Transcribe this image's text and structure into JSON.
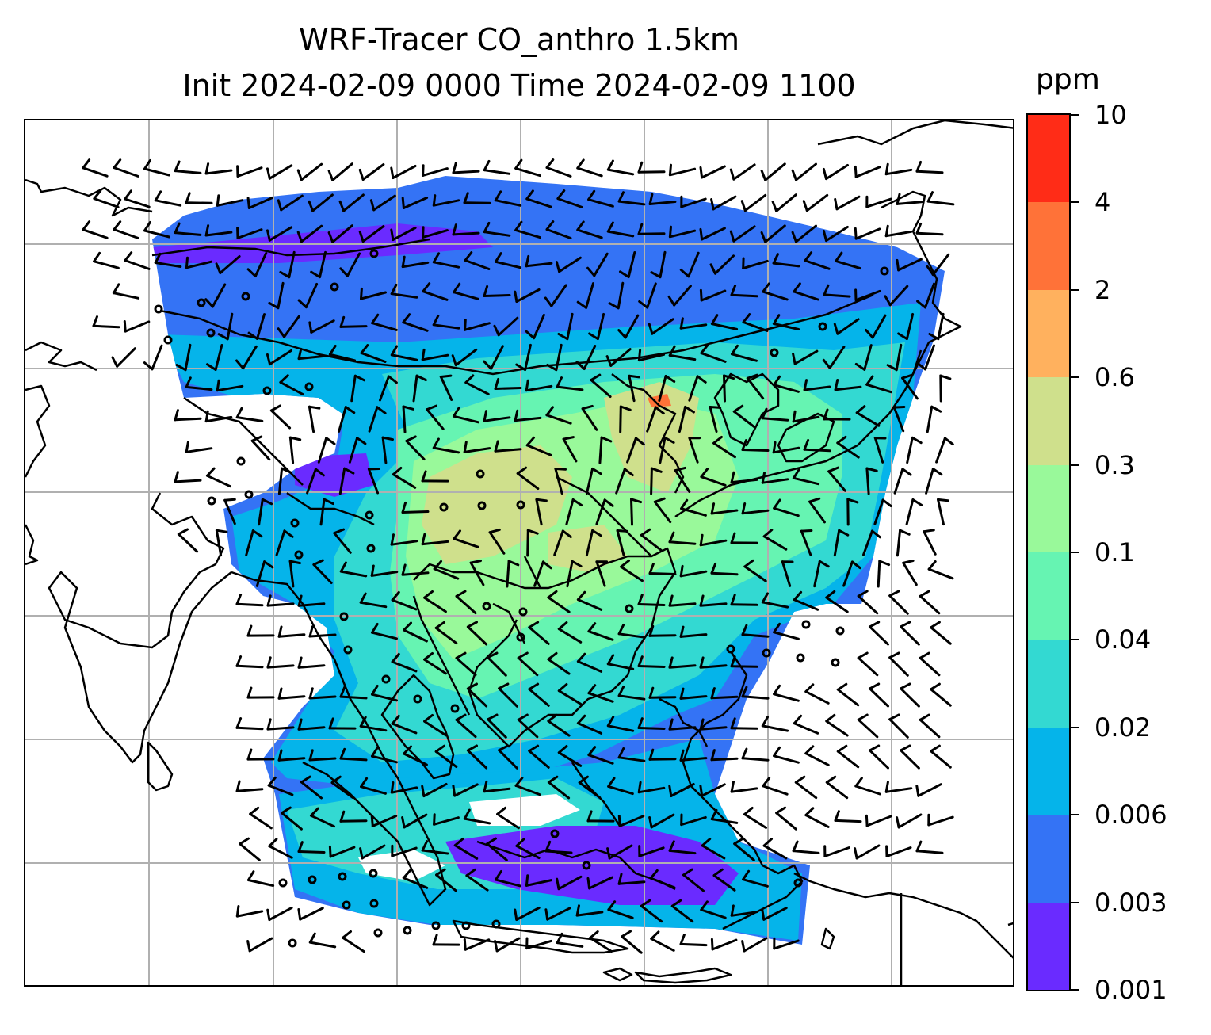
{
  "title": {
    "line1": "WRF-Tracer CO_anthro 1.5km",
    "line2": "Init 2024-02-09 0000 Time 2024-02-09 1100"
  },
  "colorbar": {
    "units": "ppm",
    "levels": [
      "0.001",
      "0.003",
      "0.006",
      "0.02",
      "0.04",
      "0.1",
      "0.3",
      "0.6",
      "2",
      "4",
      "10"
    ],
    "colors": [
      "#6a2bff",
      "#3473f5",
      "#05b4ea",
      "#33d9d2",
      "#66f4b2",
      "#99f99a",
      "#cfe08c",
      "#ffb15e",
      "#ff7238",
      "#ff2c17"
    ]
  },
  "map": {
    "gridlines": true,
    "features": [
      "coastlines",
      "country-borders",
      "wind-barbs",
      "tracer-shading"
    ]
  }
}
